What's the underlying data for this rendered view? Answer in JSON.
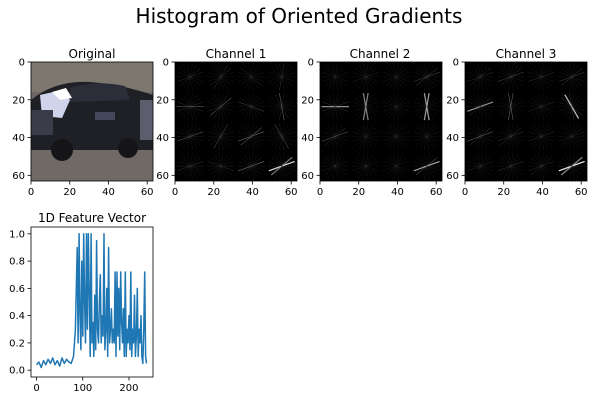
{
  "figure": {
    "title": "Histogram of Oriented Gradients"
  },
  "chart_data": [
    {
      "type": "image",
      "title": "Original",
      "xlim": [
        0,
        63
      ],
      "ylim": [
        63,
        0
      ],
      "xticks": [
        0,
        20,
        40,
        60
      ],
      "yticks": [
        0,
        20,
        40,
        60
      ],
      "content": "car-photo"
    },
    {
      "type": "hog-image",
      "title": "Channel 1",
      "xlim": [
        0,
        63
      ],
      "ylim": [
        63,
        0
      ],
      "xticks": [
        0,
        20,
        40,
        60
      ],
      "yticks": [
        0,
        20,
        40,
        60
      ],
      "grid_cells": 4,
      "cells": [
        [
          [
            30,
            0.25
          ],
          [
            50,
            0.3
          ],
          [
            140,
            0.2
          ],
          [
            80,
            0.25
          ]
        ],
        [
          [
            0,
            0.5
          ],
          [
            40,
            0.45
          ],
          [
            160,
            0.3
          ],
          [
            100,
            0.45
          ]
        ],
        [
          [
            20,
            0.4
          ],
          [
            60,
            0.35
          ],
          [
            30,
            0.6
          ],
          [
            120,
            0.4
          ]
        ],
        [
          [
            10,
            0.3
          ],
          [
            170,
            0.25
          ],
          [
            20,
            0.5
          ],
          [
            25,
            0.9
          ]
        ]
      ]
    },
    {
      "type": "hog-image",
      "title": "Channel 2",
      "xlim": [
        0,
        63
      ],
      "ylim": [
        63,
        0
      ],
      "xticks": [
        0,
        20,
        40,
        60
      ],
      "yticks": [
        0,
        20,
        40,
        60
      ],
      "grid_cells": 4,
      "cells": [
        [
          [
            30,
            0.1
          ],
          [
            20,
            0.15
          ],
          [
            40,
            0.1
          ],
          [
            30,
            0.4
          ]
        ],
        [
          [
            0,
            0.6
          ],
          [
            90,
            0.7
          ],
          [
            50,
            0.1
          ],
          [
            90,
            0.8
          ]
        ],
        [
          [
            25,
            0.4
          ],
          [
            30,
            0.1
          ],
          [
            20,
            0.1
          ],
          [
            50,
            0.1
          ]
        ],
        [
          [
            10,
            0.15
          ],
          [
            20,
            0.1
          ],
          [
            30,
            0.1
          ],
          [
            25,
            0.7
          ]
        ]
      ]
    },
    {
      "type": "hog-image",
      "title": "Channel 3",
      "xlim": [
        0,
        63
      ],
      "ylim": [
        63,
        0
      ],
      "xticks": [
        0,
        20,
        40,
        60
      ],
      "yticks": [
        0,
        20,
        40,
        60
      ],
      "grid_cells": 4,
      "cells": [
        [
          [
            30,
            0.25
          ],
          [
            25,
            0.35
          ],
          [
            20,
            0.2
          ],
          [
            30,
            0.35
          ]
        ],
        [
          [
            20,
            0.6
          ],
          [
            90,
            0.6
          ],
          [
            20,
            0.2
          ],
          [
            120,
            0.7
          ]
        ],
        [
          [
            25,
            0.45
          ],
          [
            30,
            0.3
          ],
          [
            20,
            0.2
          ],
          [
            30,
            0.2
          ]
        ],
        [
          [
            10,
            0.2
          ],
          [
            20,
            0.25
          ],
          [
            30,
            0.25
          ],
          [
            25,
            1.0
          ]
        ]
      ]
    },
    {
      "type": "line",
      "title": "1D Feature Vector",
      "xlim": [
        -12,
        252
      ],
      "ylim": [
        -0.05,
        1.05
      ],
      "xticks": [
        0,
        100,
        200
      ],
      "yticks": [
        0.0,
        0.2,
        0.4,
        0.6,
        0.8,
        1.0
      ],
      "ytick_labels": [
        "0.0",
        "0.2",
        "0.4",
        "0.6",
        "0.8",
        "1.0"
      ],
      "line_color": "#1f77b4",
      "series": [
        {
          "x": [
            0,
            5,
            10,
            15,
            20,
            25,
            30,
            35,
            40,
            45,
            50,
            55,
            60,
            65,
            70,
            75,
            80,
            84,
            86,
            88,
            90,
            92,
            94,
            96,
            98,
            100,
            102,
            104,
            106,
            108,
            110,
            112,
            114,
            116,
            118,
            120,
            122,
            124,
            126,
            128,
            130,
            132,
            134,
            136,
            138,
            140,
            142,
            144,
            146,
            148,
            150,
            152,
            154,
            156,
            158,
            160,
            162,
            164,
            166,
            168,
            170,
            172,
            174,
            176,
            178,
            180,
            182,
            184,
            186,
            188,
            190,
            192,
            194,
            196,
            198,
            200,
            202,
            204,
            206,
            208,
            210,
            212,
            214,
            216,
            218,
            220,
            222,
            224,
            226,
            228,
            230,
            232,
            234,
            236,
            238
          ],
          "y": [
            0.04,
            0.06,
            0.02,
            0.07,
            0.04,
            0.08,
            0.05,
            0.09,
            0.04,
            0.07,
            0.03,
            0.09,
            0.05,
            0.08,
            0.06,
            0.05,
            0.1,
            0.3,
            0.6,
            0.9,
            0.2,
            1.0,
            0.4,
            0.15,
            0.8,
            0.25,
            1.0,
            0.5,
            0.2,
            1.0,
            0.3,
            1.0,
            0.6,
            0.1,
            1.0,
            0.2,
            0.35,
            0.1,
            0.55,
            0.15,
            0.95,
            0.3,
            0.2,
            0.5,
            0.7,
            0.2,
            0.4,
            0.25,
            1.0,
            0.15,
            0.3,
            0.6,
            0.1,
            0.9,
            0.2,
            0.3,
            0.45,
            0.2,
            0.3,
            0.2,
            0.72,
            0.1,
            0.72,
            0.25,
            0.6,
            0.15,
            0.72,
            0.35,
            0.2,
            0.45,
            0.1,
            0.72,
            0.1,
            0.3,
            0.2,
            0.4,
            0.15,
            0.72,
            0.1,
            0.3,
            0.2,
            0.55,
            0.1,
            0.25,
            0.6,
            0.1,
            0.3,
            0.2,
            0.4,
            0.1,
            0.05,
            0.3,
            0.72,
            0.1,
            0.05
          ]
        }
      ]
    }
  ]
}
